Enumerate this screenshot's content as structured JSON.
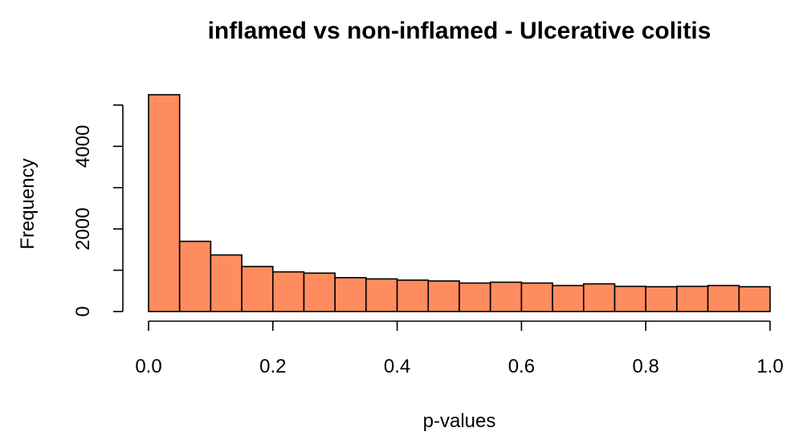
{
  "chart_data": {
    "type": "bar",
    "title": "inflamed vs non-inflamed - Ulcerative colitis",
    "xlabel": "p-values",
    "ylabel": "Frequency",
    "bar_color": "#FF8C5F",
    "bin_edges": [
      0.0,
      0.05,
      0.1,
      0.15,
      0.2,
      0.25,
      0.3,
      0.35,
      0.4,
      0.45,
      0.5,
      0.55,
      0.6,
      0.65,
      0.7,
      0.75,
      0.8,
      0.85,
      0.9,
      0.95,
      1.0
    ],
    "values": [
      5250,
      1700,
      1370,
      1090,
      960,
      930,
      820,
      790,
      760,
      740,
      690,
      710,
      690,
      630,
      670,
      610,
      600,
      610,
      630,
      600
    ],
    "xlim": [
      0.0,
      1.0
    ],
    "ylim": [
      0,
      5300
    ],
    "x_ticks": [
      0.0,
      0.2,
      0.4,
      0.6,
      0.8,
      1.0
    ],
    "x_tick_labels": [
      "0.0",
      "0.2",
      "0.4",
      "0.6",
      "0.8",
      "1.0"
    ],
    "y_ticks": [
      0,
      1000,
      2000,
      3000,
      4000,
      5000
    ],
    "y_tick_labels": [
      "0",
      "",
      "2000",
      "",
      "4000",
      ""
    ],
    "grid": false,
    "legend": "none"
  }
}
